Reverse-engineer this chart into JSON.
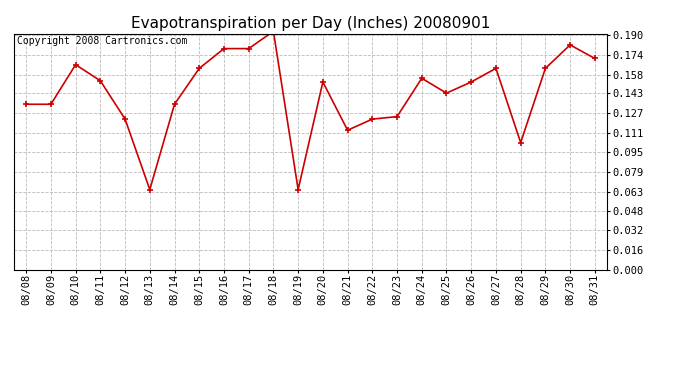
{
  "title": "Evapotranspiration per Day (Inches) 20080901",
  "copyright": "Copyright 2008 Cartronics.com",
  "x_labels": [
    "08/08",
    "08/09",
    "08/10",
    "08/11",
    "08/12",
    "08/13",
    "08/14",
    "08/15",
    "08/16",
    "08/17",
    "08/18",
    "08/19",
    "08/20",
    "08/21",
    "08/22",
    "08/23",
    "08/24",
    "08/25",
    "08/26",
    "08/27",
    "08/28",
    "08/29",
    "08/30",
    "08/31"
  ],
  "y_values": [
    0.134,
    0.134,
    0.166,
    0.153,
    0.122,
    0.065,
    0.134,
    0.163,
    0.179,
    0.179,
    0.193,
    0.065,
    0.152,
    0.113,
    0.122,
    0.124,
    0.155,
    0.143,
    0.152,
    0.163,
    0.103,
    0.163,
    0.182,
    0.171
  ],
  "line_color": "#cc0000",
  "marker_color": "#cc0000",
  "background_color": "#ffffff",
  "plot_bg_color": "#ffffff",
  "grid_color": "#bbbbbb",
  "ylim": [
    0.0,
    0.19
  ],
  "yticks": [
    0.0,
    0.016,
    0.032,
    0.048,
    0.063,
    0.079,
    0.095,
    0.111,
    0.127,
    0.143,
    0.158,
    0.174,
    0.19
  ],
  "title_fontsize": 11,
  "copyright_fontsize": 7,
  "tick_fontsize": 7.5
}
